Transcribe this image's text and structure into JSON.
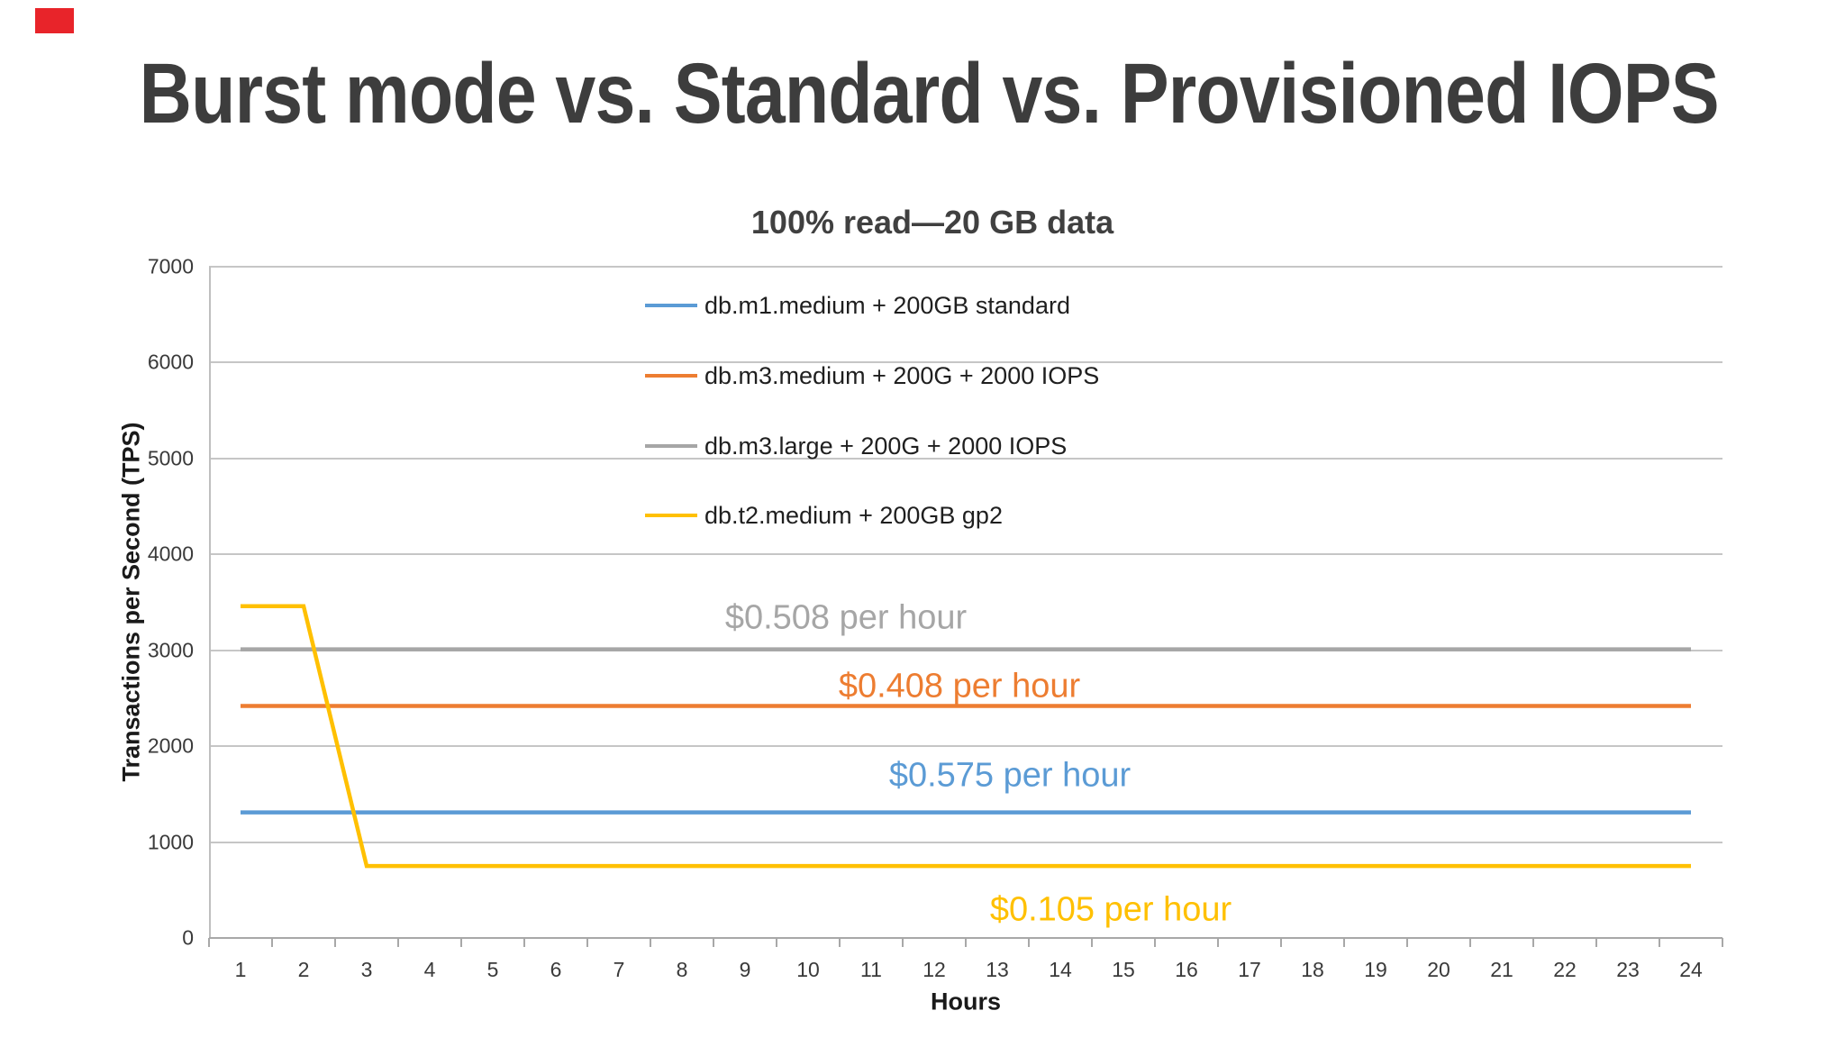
{
  "slide": {
    "title": "Burst mode vs. Standard vs. Provisioned IOPS"
  },
  "decoration": {
    "red_marker_color": "#e8242a"
  },
  "chart_data": {
    "type": "line",
    "title": "100% read—20 GB data",
    "xlabel": "Hours",
    "ylabel": "Transactions per Second (TPS)",
    "x": [
      1,
      2,
      3,
      4,
      5,
      6,
      7,
      8,
      9,
      10,
      11,
      12,
      13,
      14,
      15,
      16,
      17,
      18,
      19,
      20,
      21,
      22,
      23,
      24
    ],
    "ylim": [
      0,
      7000
    ],
    "yticks": [
      0,
      1000,
      2000,
      3000,
      4000,
      5000,
      6000,
      7000
    ],
    "grid": "horizontal",
    "legend_position": "inside-top-center",
    "axis_color": "#a8a8a8",
    "gridline_color": "#c6c6c6",
    "series": [
      {
        "name": "db.m1.medium + 200GB standard",
        "color": "#5B9BD5",
        "values": [
          1310,
          1310,
          1310,
          1310,
          1310,
          1310,
          1310,
          1310,
          1310,
          1310,
          1310,
          1310,
          1310,
          1310,
          1310,
          1310,
          1310,
          1310,
          1310,
          1310,
          1310,
          1310,
          1310,
          1310
        ]
      },
      {
        "name": "db.m3.medium + 200G + 2000 IOPS",
        "color": "#ED7D31",
        "values": [
          2420,
          2420,
          2420,
          2420,
          2420,
          2420,
          2420,
          2420,
          2420,
          2420,
          2420,
          2420,
          2420,
          2420,
          2420,
          2420,
          2420,
          2420,
          2420,
          2420,
          2420,
          2420,
          2420,
          2420
        ]
      },
      {
        "name": "db.m3.large + 200G + 2000 IOPS",
        "color": "#A6A6A6",
        "values": [
          3010,
          3010,
          3010,
          3010,
          3010,
          3010,
          3010,
          3010,
          3010,
          3010,
          3010,
          3010,
          3010,
          3010,
          3010,
          3010,
          3010,
          3010,
          3010,
          3010,
          3010,
          3010,
          3010,
          3010
        ]
      },
      {
        "name": "db.t2.medium + 200GB gp2",
        "color": "#FFC000",
        "values": [
          3460,
          3460,
          750,
          750,
          750,
          750,
          750,
          750,
          750,
          750,
          750,
          750,
          750,
          750,
          750,
          750,
          750,
          750,
          750,
          750,
          750,
          750,
          750,
          750
        ]
      }
    ],
    "annotations": [
      {
        "text": "$0.508 per hour",
        "color": "#A6A6A6",
        "x": 10.6,
        "y": 3340
      },
      {
        "text": "$0.408 per hour",
        "color": "#ED7D31",
        "x": 12.4,
        "y": 2620
      },
      {
        "text": "$0.575 per hour",
        "color": "#5B9BD5",
        "x": 13.2,
        "y": 1690
      },
      {
        "text": "$0.105 per hour",
        "color": "#FFC000",
        "x": 14.8,
        "y": 290
      }
    ]
  }
}
